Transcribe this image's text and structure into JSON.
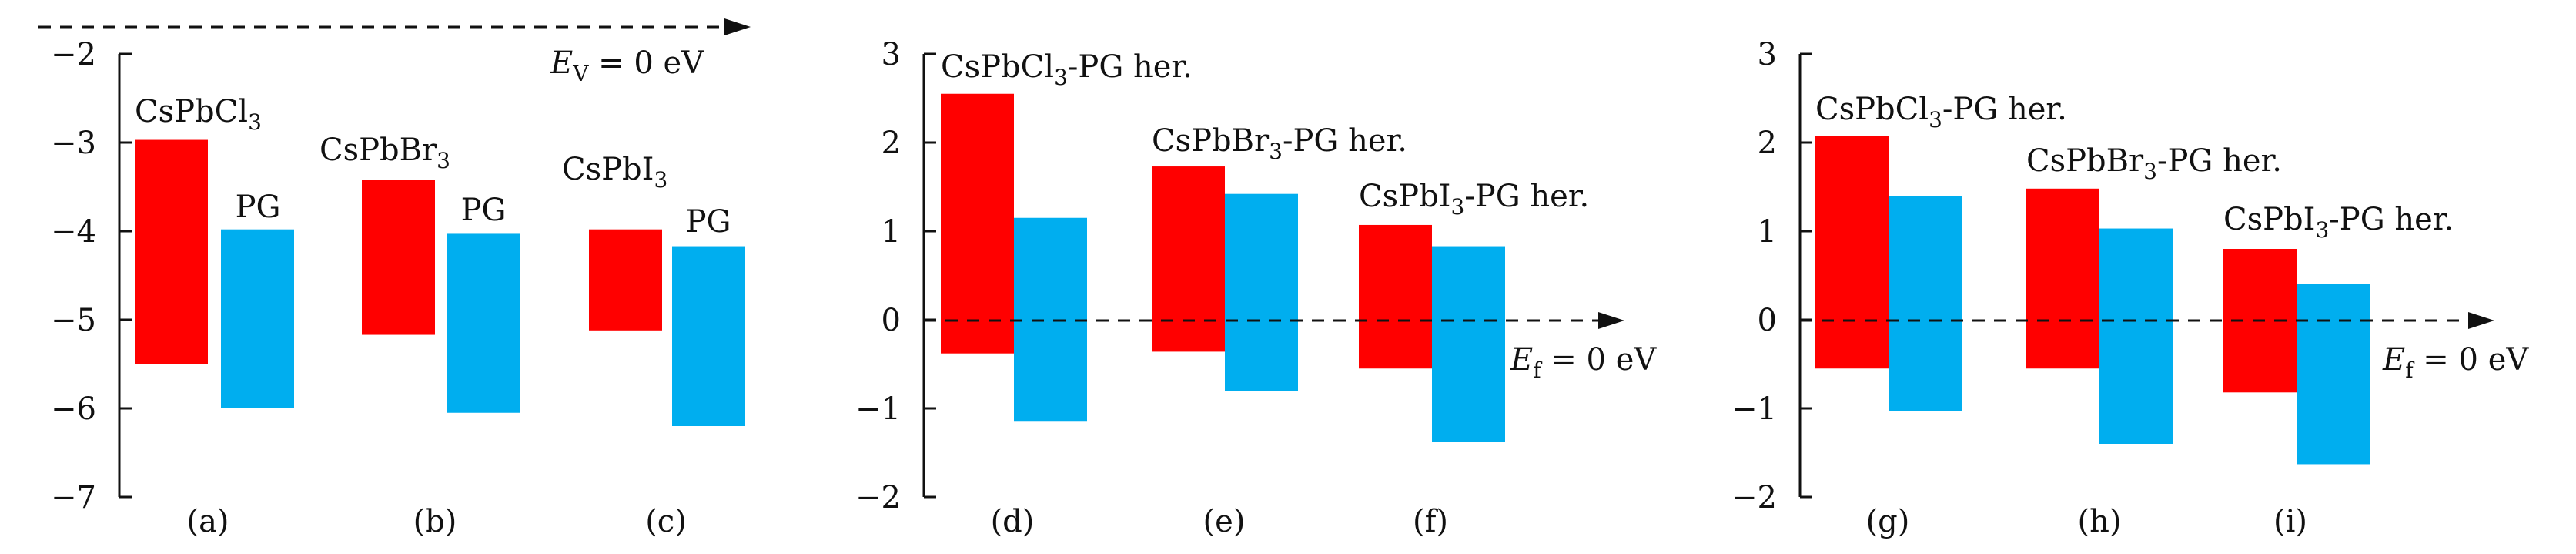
{
  "chart_data": [
    {
      "type": "bar",
      "panel": "left",
      "yticks": [
        -7,
        -6,
        -5,
        -4,
        -3,
        -2
      ],
      "ylim": [
        -7,
        -2
      ],
      "reference_line": {
        "y": -2,
        "label_var": "E",
        "label_sub": "V",
        "label_rest": " = 0 eV"
      },
      "colors": {
        "perovskite": "#ff0000",
        "pg": "#00aeef"
      },
      "groups": [
        {
          "id": "a",
          "panel_label": "(a)",
          "bars": [
            {
              "label_main": "CsPbCl",
              "label_sub": "3",
              "label_suffix": "",
              "low": -5.5,
              "high": -2.97,
              "kind": "perovskite"
            },
            {
              "label_main": "PG",
              "label_sub": "",
              "label_suffix": "",
              "low": -6.0,
              "high": -3.98,
              "kind": "pg"
            }
          ]
        },
        {
          "id": "b",
          "panel_label": "(b)",
          "bars": [
            {
              "label_main": "CsPbBr",
              "label_sub": "3",
              "label_suffix": "",
              "low": -5.17,
              "high": -3.42,
              "kind": "perovskite"
            },
            {
              "label_main": "PG",
              "label_sub": "",
              "label_suffix": "",
              "low": -6.05,
              "high": -4.03,
              "kind": "pg"
            }
          ]
        },
        {
          "id": "c",
          "panel_label": "(c)",
          "bars": [
            {
              "label_main": "CsPbI",
              "label_sub": "3",
              "label_suffix": "",
              "low": -5.12,
              "high": -3.98,
              "kind": "perovskite"
            },
            {
              "label_main": "PG",
              "label_sub": "",
              "label_suffix": "",
              "low": -6.2,
              "high": -4.17,
              "kind": "pg"
            }
          ]
        }
      ]
    },
    {
      "type": "bar",
      "panel": "middle",
      "yticks": [
        -2,
        -1,
        0,
        1,
        2,
        3
      ],
      "ylim": [
        -2,
        3
      ],
      "reference_line": {
        "y": 0,
        "label_var": "E",
        "label_sub": "f",
        "label_rest": " = 0 eV"
      },
      "colors": {
        "perovskite": "#ff0000",
        "pg": "#00aeef"
      },
      "groups": [
        {
          "id": "d",
          "panel_label": "(d)",
          "annotation_main": "CsPbCl",
          "annotation_sub": "3",
          "annotation_suffix": "-PG her.",
          "bars": [
            {
              "low": -0.38,
              "high": 2.55,
              "kind": "perovskite"
            },
            {
              "low": -1.15,
              "high": 1.15,
              "kind": "pg"
            }
          ]
        },
        {
          "id": "e",
          "panel_label": "(e)",
          "annotation_main": "CsPbBr",
          "annotation_sub": "3",
          "annotation_suffix": "-PG her.",
          "bars": [
            {
              "low": -0.36,
              "high": 1.73,
              "kind": "perovskite"
            },
            {
              "low": -0.8,
              "high": 1.42,
              "kind": "pg"
            }
          ]
        },
        {
          "id": "f",
          "panel_label": "(f)",
          "annotation_main": "CsPbI",
          "annotation_sub": "3",
          "annotation_suffix": "-PG her.",
          "bars": [
            {
              "low": -0.55,
              "high": 1.07,
              "kind": "perovskite"
            },
            {
              "low": -1.38,
              "high": 0.83,
              "kind": "pg"
            }
          ]
        }
      ]
    },
    {
      "type": "bar",
      "panel": "right",
      "yticks": [
        -2,
        -1,
        0,
        1,
        2,
        3
      ],
      "ylim": [
        -2,
        3
      ],
      "reference_line": {
        "y": 0,
        "label_var": "E",
        "label_sub": "f",
        "label_rest": " = 0 eV"
      },
      "colors": {
        "perovskite": "#ff0000",
        "pg": "#00aeef"
      },
      "groups": [
        {
          "id": "g",
          "panel_label": "(g)",
          "annotation_main": "CsPbCl",
          "annotation_sub": "3",
          "annotation_suffix": "-PG her.",
          "bars": [
            {
              "low": -0.55,
              "high": 2.07,
              "kind": "perovskite"
            },
            {
              "low": -1.03,
              "high": 1.4,
              "kind": "pg"
            }
          ]
        },
        {
          "id": "h",
          "panel_label": "(h)",
          "annotation_main": "CsPbBr",
          "annotation_sub": "3",
          "annotation_suffix": "-PG her.",
          "bars": [
            {
              "low": -0.55,
              "high": 1.48,
              "kind": "perovskite"
            },
            {
              "low": -1.4,
              "high": 1.03,
              "kind": "pg"
            }
          ]
        },
        {
          "id": "i",
          "panel_label": "(i)",
          "annotation_main": "CsPbI",
          "annotation_sub": "3",
          "annotation_suffix": "-PG her.",
          "bars": [
            {
              "low": -0.82,
              "high": 0.8,
              "kind": "perovskite"
            },
            {
              "low": -1.63,
              "high": 0.4,
              "kind": "pg"
            }
          ]
        }
      ]
    }
  ]
}
